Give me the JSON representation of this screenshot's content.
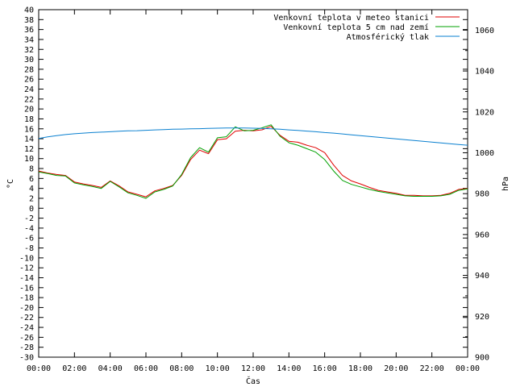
{
  "chart_data": {
    "type": "line",
    "xlabel": "Čas",
    "ylabel": "°C",
    "y2label": "hPa",
    "ylim": [
      -30,
      40
    ],
    "y2lim": [
      900,
      1070
    ],
    "y_ticks": [
      "40",
      "38",
      "36",
      "34",
      "32",
      "30",
      "28",
      "26",
      "24",
      "22",
      "20",
      "18",
      "16",
      "14",
      "12",
      "10",
      "8",
      "6",
      "4",
      "2",
      "0",
      "-2",
      "-4",
      "-6",
      "-8",
      "-10",
      "-12",
      "-14",
      "-16",
      "-18",
      "-20",
      "-22",
      "-24",
      "-26",
      "-28",
      "-30"
    ],
    "y2_ticks": [
      "1060",
      "1040",
      "1020",
      "1000",
      "980",
      "960",
      "940",
      "920",
      "900"
    ],
    "x_ticks": [
      "00:00",
      "02:00",
      "04:00",
      "06:00",
      "08:00",
      "10:00",
      "12:00",
      "14:00",
      "16:00",
      "18:00",
      "20:00",
      "22:00",
      "00:00"
    ],
    "grid": false,
    "legend_position": "top-right",
    "x_hours": [
      0,
      0.5,
      1,
      1.5,
      2,
      2.5,
      3,
      3.5,
      4,
      4.5,
      5,
      5.5,
      6,
      6.5,
      7,
      7.5,
      8,
      8.5,
      9,
      9.5,
      10,
      10.5,
      11,
      11.5,
      12,
      12.5,
      13,
      13.5,
      14,
      14.5,
      15,
      15.5,
      16,
      16.5,
      17,
      17.5,
      18,
      18.5,
      19,
      19.5,
      20,
      20.5,
      21,
      21.5,
      22,
      22.5,
      23,
      23.5,
      24
    ],
    "series": [
      {
        "name": "Venkovní teplota v meteo stanici",
        "color": "#e00000",
        "axis": "left",
        "values": [
          7.5,
          7.1,
          6.8,
          6.6,
          5.3,
          4.9,
          4.6,
          4.2,
          5.5,
          4.5,
          3.3,
          2.8,
          2.3,
          3.5,
          4.0,
          4.6,
          6.6,
          9.8,
          11.7,
          11.0,
          13.8,
          14.0,
          15.5,
          15.7,
          15.6,
          15.8,
          16.5,
          14.7,
          13.5,
          13.3,
          12.7,
          12.2,
          11.2,
          8.7,
          6.6,
          5.5,
          4.9,
          4.2,
          3.6,
          3.3,
          3.0,
          2.6,
          2.6,
          2.5,
          2.5,
          2.6,
          3.0,
          3.8,
          4.0
        ]
      },
      {
        "name": "Venkovní teplota 5 cm nad zemí",
        "color": "#00a000",
        "axis": "left",
        "values": [
          7.3,
          7.0,
          6.6,
          6.5,
          5.1,
          4.7,
          4.4,
          4.0,
          5.4,
          4.3,
          3.1,
          2.6,
          2.0,
          3.3,
          3.8,
          4.5,
          6.8,
          10.2,
          12.2,
          11.3,
          14.2,
          14.4,
          16.4,
          15.6,
          15.7,
          16.2,
          16.8,
          14.5,
          13.2,
          12.7,
          12.0,
          11.3,
          9.8,
          7.5,
          5.6,
          4.8,
          4.3,
          3.8,
          3.4,
          3.1,
          2.8,
          2.5,
          2.4,
          2.4,
          2.4,
          2.5,
          2.8,
          3.6,
          3.9
        ]
      },
      {
        "name": "Atmosférický tlak",
        "color": "#0a80d0",
        "axis": "right",
        "values": [
          1007.0,
          1007.8,
          1008.4,
          1008.9,
          1009.3,
          1009.6,
          1009.9,
          1010.1,
          1010.3,
          1010.5,
          1010.7,
          1010.8,
          1011.0,
          1011.2,
          1011.3,
          1011.5,
          1011.6,
          1011.7,
          1011.8,
          1011.9,
          1012.0,
          1012.1,
          1012.1,
          1012.1,
          1012.0,
          1011.9,
          1011.7,
          1011.5,
          1011.2,
          1010.9,
          1010.6,
          1010.3,
          1009.9,
          1009.6,
          1009.2,
          1008.8,
          1008.4,
          1008.0,
          1007.6,
          1007.2,
          1006.8,
          1006.4,
          1006.0,
          1005.6,
          1005.2,
          1004.8,
          1004.4,
          1004.0,
          1003.7
        ]
      }
    ]
  }
}
